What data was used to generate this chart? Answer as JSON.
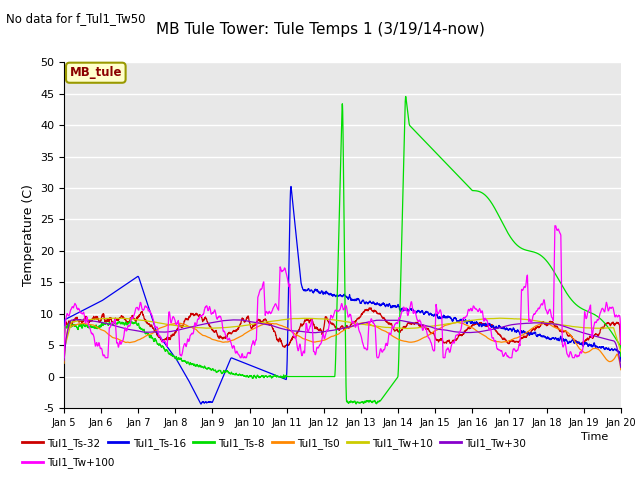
{
  "title": "MB Tule Tower: Tule Temps 1 (3/19/14-now)",
  "subtitle": "No data for f_Tul1_Tw50",
  "xlabel": "Time",
  "ylabel": "Temperature (C)",
  "ylim": [
    -5,
    50
  ],
  "xlim": [
    0,
    15
  ],
  "x_tick_labels": [
    "Jan 5",
    "Jan 6",
    "Jan 7",
    "Jan 8",
    "Jan 9",
    "Jan 10",
    "Jan 11",
    "Jan 12",
    "Jan 13",
    "Jan 14",
    "Jan 15",
    "Jan 16",
    "Jan 17",
    "Jan 18",
    "Jan 19",
    "Jan 20"
  ],
  "legend_label_box": "MB_tule",
  "colors": {
    "Tul1_Ts-32": "#cc0000",
    "Tul1_Ts-16": "#0000ee",
    "Tul1_Ts-8": "#00dd00",
    "Tul1_Ts0": "#ff8800",
    "Tul1_Tw+10": "#cccc00",
    "Tul1_Tw+30": "#8800cc",
    "Tul1_Tw+100": "#ff00ff"
  },
  "plot_bg": "#e8e8e8",
  "grid_color": "#ffffff"
}
